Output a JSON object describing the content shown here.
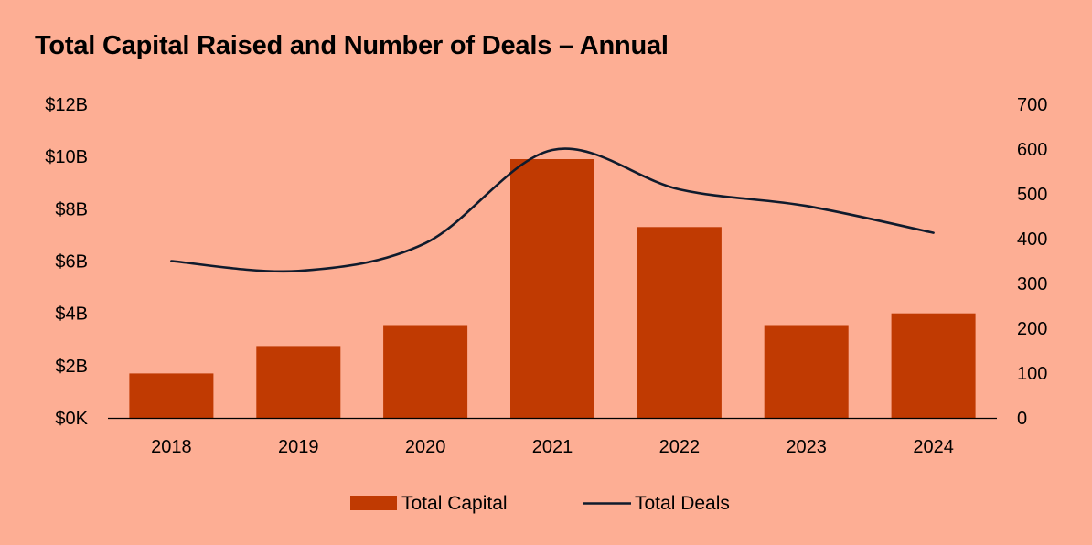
{
  "colors": {
    "background": "#FDAE94",
    "bar": "#C03A02",
    "line": "#0F1B2D",
    "axis": "#000000"
  },
  "chart_data": {
    "type": "bar",
    "title": "Total Capital Raised and Number of Deals – Annual",
    "categories": [
      "2018",
      "2019",
      "2020",
      "2021",
      "2022",
      "2023",
      "2024"
    ],
    "series": [
      {
        "name": "Total Capital",
        "type": "bar",
        "axis": "left",
        "values": [
          1.7,
          2.75,
          3.55,
          9.9,
          7.3,
          3.55,
          4.0
        ]
      },
      {
        "name": "Total Deals",
        "type": "line",
        "smooth": true,
        "axis": "right",
        "values": [
          350,
          328,
          390,
          598,
          510,
          473,
          413
        ]
      }
    ],
    "y_left": {
      "range": [
        0,
        12
      ],
      "ticks": [
        0,
        2,
        4,
        6,
        8,
        10,
        12
      ],
      "tick_labels": [
        "$0K",
        "$2B",
        "$4B",
        "$6B",
        "$8B",
        "$10B",
        "$12B"
      ]
    },
    "y_right": {
      "range": [
        0,
        700
      ],
      "ticks": [
        0,
        100,
        200,
        300,
        400,
        500,
        600,
        700
      ],
      "tick_labels": [
        "0",
        "100",
        "200",
        "300",
        "400",
        "500",
        "600",
        "700"
      ]
    },
    "grid": false,
    "legend": "bottom-center"
  }
}
